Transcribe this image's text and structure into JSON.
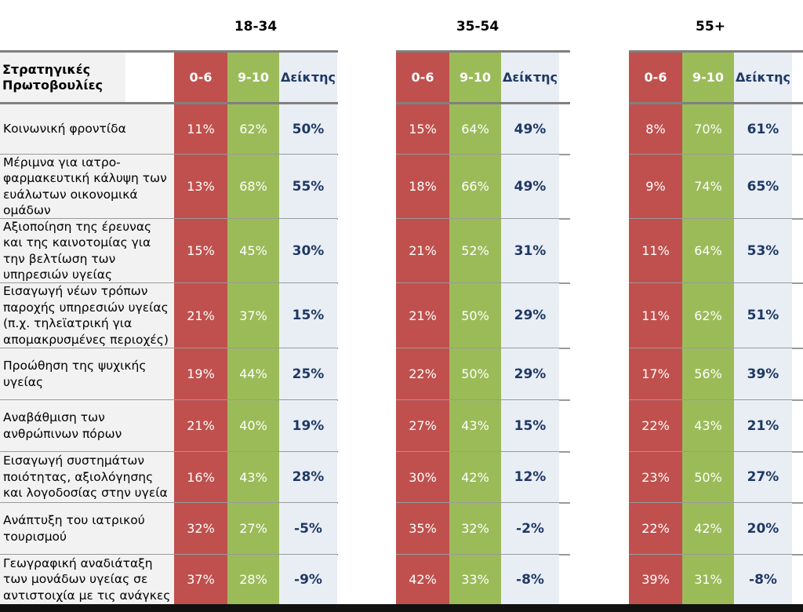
{
  "colors": {
    "low": "#c0504d",
    "high": "#9bbb59",
    "index_bg": "#e9eef5",
    "index_text": "#1f3864",
    "label_bg": "#f2f2f2"
  },
  "chart_data": {
    "type": "table",
    "row_header": "Στρατηγικές Πρωτοβουλίες",
    "column_labels": [
      "0-6",
      "9-10",
      "Δείκτης"
    ],
    "groups": [
      "18-34",
      "35-54",
      "55+"
    ],
    "rows": [
      {
        "label": "Κοινωνική φροντίδα",
        "values": [
          [
            "11%",
            "62%",
            "50%"
          ],
          [
            "15%",
            "64%",
            "49%"
          ],
          [
            "8%",
            "70%",
            "61%"
          ]
        ]
      },
      {
        "label": "Μέριμνα για ιατρο-φαρμακευτική κάλυψη των ευάλωτων οικονομικά ομάδων",
        "values": [
          [
            "13%",
            "68%",
            "55%"
          ],
          [
            "18%",
            "66%",
            "49%"
          ],
          [
            "9%",
            "74%",
            "65%"
          ]
        ]
      },
      {
        "label": "Αξιοποίηση της έρευνας και της καινοτομίας για την βελτίωση των υπηρεσιών υγείας",
        "values": [
          [
            "15%",
            "45%",
            "30%"
          ],
          [
            "21%",
            "52%",
            "31%"
          ],
          [
            "11%",
            "64%",
            "53%"
          ]
        ]
      },
      {
        "label": "Εισαγωγή νέων τρόπων παροχής υπηρεσιών υγείας (π.χ. τηλεϊατρική για απομακρυσμένες περιοχές)",
        "values": [
          [
            "21%",
            "37%",
            "15%"
          ],
          [
            "21%",
            "50%",
            "29%"
          ],
          [
            "11%",
            "62%",
            "51%"
          ]
        ]
      },
      {
        "label": "Προώθηση της ψυχικής υγείας",
        "values": [
          [
            "19%",
            "44%",
            "25%"
          ],
          [
            "22%",
            "50%",
            "29%"
          ],
          [
            "17%",
            "56%",
            "39%"
          ]
        ]
      },
      {
        "label": "Αναβάθμιση των ανθρώπινων πόρων",
        "values": [
          [
            "21%",
            "40%",
            "19%"
          ],
          [
            "27%",
            "43%",
            "15%"
          ],
          [
            "22%",
            "43%",
            "21%"
          ]
        ]
      },
      {
        "label": "Εισαγωγή συστημάτων ποιότητας, αξιολόγησης και λογοδοσίας στην υγεία",
        "values": [
          [
            "16%",
            "43%",
            "28%"
          ],
          [
            "30%",
            "42%",
            "12%"
          ],
          [
            "23%",
            "50%",
            "27%"
          ]
        ]
      },
      {
        "label": "Ανάπτυξη του ιατρικού τουρισμού",
        "values": [
          [
            "32%",
            "27%",
            "-5%"
          ],
          [
            "35%",
            "32%",
            "-2%"
          ],
          [
            "22%",
            "42%",
            "20%"
          ]
        ]
      },
      {
        "label": "Γεωγραφική αναδιάταξη των μονάδων υγείας σε αντιστοιχία με τις ανάγκες",
        "values": [
          [
            "37%",
            "28%",
            "-9%"
          ],
          [
            "42%",
            "33%",
            "-8%"
          ],
          [
            "39%",
            "31%",
            "-8%"
          ]
        ]
      }
    ]
  }
}
